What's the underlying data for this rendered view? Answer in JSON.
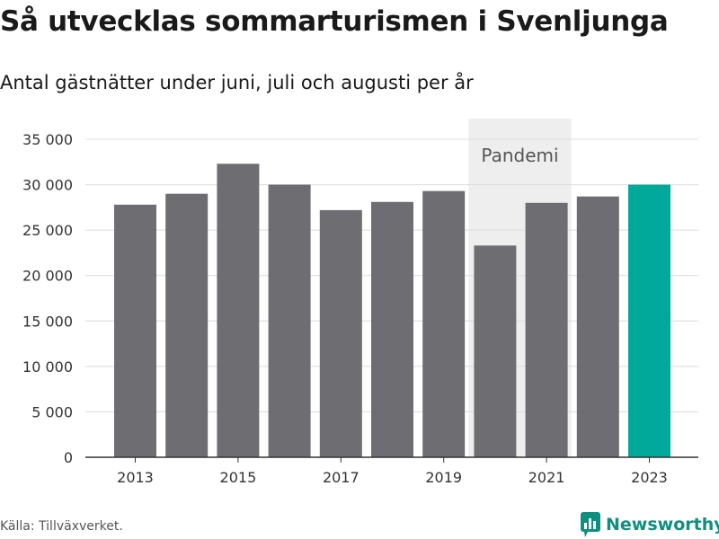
{
  "header": {
    "title": "Så utvecklas sommarturismen i Svenljunga",
    "subtitle": "Antal gästnätter under juni, juli och augusti per år"
  },
  "footer": {
    "source": "Källa: Tillväxverket.",
    "logo_text": "Newsworthy",
    "logo_color": "#0f8f80"
  },
  "chart_data": {
    "type": "bar",
    "categories": [
      "2013",
      "2014",
      "2015",
      "2016",
      "2017",
      "2018",
      "2019",
      "2020",
      "2021",
      "2022",
      "2023"
    ],
    "values": [
      27800,
      29000,
      32300,
      30000,
      27200,
      28100,
      29300,
      23300,
      28000,
      28700,
      30000
    ],
    "x_tick_labels": [
      "2013",
      "2015",
      "2017",
      "2019",
      "2021",
      "2023"
    ],
    "y_ticks": [
      0,
      5000,
      10000,
      15000,
      20000,
      25000,
      30000,
      35000
    ],
    "y_tick_labels": [
      "0",
      "5 000",
      "10 000",
      "15 000",
      "20 000",
      "25 000",
      "30 000",
      "35 000"
    ],
    "ylim": [
      0,
      35000
    ],
    "grid": true,
    "bar_color": "#6e6d72",
    "highlight": {
      "category": "2023",
      "color": "#00a99a"
    },
    "shaded_region": {
      "label": "Pandemi",
      "categories": [
        "2020",
        "2021"
      ],
      "color": "#eeeeee"
    }
  }
}
